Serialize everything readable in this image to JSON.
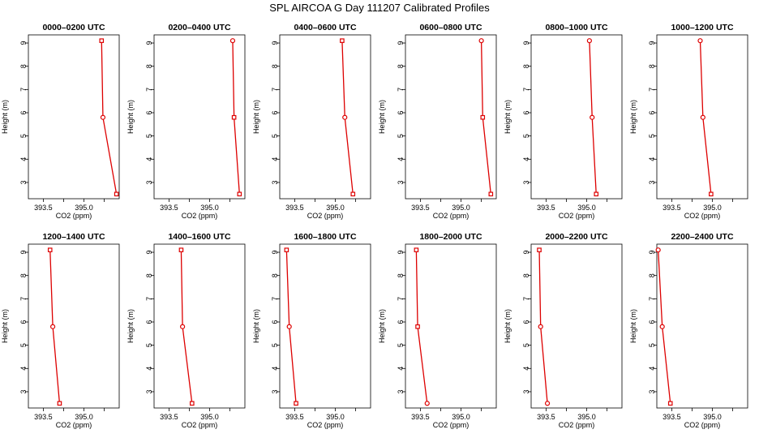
{
  "figure": {
    "title": "SPL AIRCOA G  Day 111207  Calibrated Profiles"
  },
  "colors": {
    "profile": "#dd0000",
    "axis": "#000000"
  },
  "chart_data": [
    {
      "type": "line",
      "title": "0000–0200 UTC",
      "xlabel": "CO2 (ppm)",
      "ylabel": "Height (m)",
      "x_ticks": [
        "393.5",
        "395.0"
      ],
      "y_ticks": [
        "3",
        "4",
        "5",
        "6",
        "7",
        "8",
        "9"
      ],
      "xlim": [
        392.95,
        396.3
      ],
      "ylim": [
        2.3,
        9.35
      ],
      "grid": false,
      "series": [
        {
          "x": [
            395.65,
            395.7,
            396.2
          ],
          "y": [
            9.1,
            5.8,
            2.5
          ],
          "markers": [
            "square",
            "circle",
            "square"
          ]
        }
      ]
    },
    {
      "type": "line",
      "title": "0200–0400 UTC",
      "xlabel": "CO2 (ppm)",
      "ylabel": "Height (m)",
      "x_ticks": [
        "393.5",
        "395.0"
      ],
      "y_ticks": [
        "3",
        "4",
        "5",
        "6",
        "7",
        "8",
        "9"
      ],
      "xlim": [
        392.95,
        396.3
      ],
      "ylim": [
        2.3,
        9.35
      ],
      "grid": false,
      "series": [
        {
          "x": [
            395.85,
            395.9,
            396.1
          ],
          "y": [
            9.1,
            5.8,
            2.5
          ],
          "markers": [
            "circle",
            "square",
            "square"
          ]
        }
      ]
    },
    {
      "type": "line",
      "title": "0400–0600 UTC",
      "xlabel": "CO2 (ppm)",
      "ylabel": "Height (m)",
      "x_ticks": [
        "393.5",
        "395.0"
      ],
      "y_ticks": [
        "3",
        "4",
        "5",
        "6",
        "7",
        "8",
        "9"
      ],
      "xlim": [
        392.95,
        396.3
      ],
      "ylim": [
        2.3,
        9.35
      ],
      "grid": false,
      "series": [
        {
          "x": [
            395.25,
            395.35,
            395.65
          ],
          "y": [
            9.1,
            5.8,
            2.5
          ],
          "markers": [
            "square",
            "circle",
            "square"
          ]
        }
      ]
    },
    {
      "type": "line",
      "title": "0600–0800 UTC",
      "xlabel": "CO2 (ppm)",
      "ylabel": "Height (m)",
      "x_ticks": [
        "393.5",
        "395.0"
      ],
      "y_ticks": [
        "3",
        "4",
        "5",
        "6",
        "7",
        "8",
        "9"
      ],
      "xlim": [
        392.95,
        396.3
      ],
      "ylim": [
        2.3,
        9.35
      ],
      "grid": false,
      "series": [
        {
          "x": [
            395.75,
            395.8,
            396.1
          ],
          "y": [
            9.1,
            5.8,
            2.5
          ],
          "markers": [
            "circle",
            "square",
            "square"
          ]
        }
      ]
    },
    {
      "type": "line",
      "title": "0800–1000 UTC",
      "xlabel": "CO2 (ppm)",
      "ylabel": "Height (m)",
      "x_ticks": [
        "393.5",
        "395.0"
      ],
      "y_ticks": [
        "3",
        "4",
        "5",
        "6",
        "7",
        "8",
        "9"
      ],
      "xlim": [
        392.95,
        396.3
      ],
      "ylim": [
        2.3,
        9.35
      ],
      "grid": false,
      "series": [
        {
          "x": [
            395.1,
            395.2,
            395.35
          ],
          "y": [
            9.1,
            5.8,
            2.5
          ],
          "markers": [
            "circle",
            "circle",
            "square"
          ]
        }
      ]
    },
    {
      "type": "line",
      "title": "1000–1200 UTC",
      "xlabel": "CO2 (ppm)",
      "ylabel": "Height (m)",
      "x_ticks": [
        "393.5",
        "395.0"
      ],
      "y_ticks": [
        "3",
        "4",
        "5",
        "6",
        "7",
        "8",
        "9"
      ],
      "xlim": [
        392.95,
        396.3
      ],
      "ylim": [
        2.3,
        9.35
      ],
      "grid": false,
      "series": [
        {
          "x": [
            394.55,
            394.65,
            394.95
          ],
          "y": [
            9.1,
            5.8,
            2.5
          ],
          "markers": [
            "circle",
            "circle",
            "square"
          ]
        }
      ]
    },
    {
      "type": "line",
      "title": "1200–1400 UTC",
      "xlabel": "CO2 (ppm)",
      "ylabel": "Height (m)",
      "x_ticks": [
        "393.5",
        "395.0"
      ],
      "y_ticks": [
        "3",
        "4",
        "5",
        "6",
        "7",
        "8",
        "9"
      ],
      "xlim": [
        392.95,
        396.3
      ],
      "ylim": [
        2.3,
        9.35
      ],
      "grid": false,
      "series": [
        {
          "x": [
            393.75,
            393.85,
            394.1
          ],
          "y": [
            9.1,
            5.8,
            2.5
          ],
          "markers": [
            "square",
            "circle",
            "square"
          ]
        }
      ]
    },
    {
      "type": "line",
      "title": "1400–1600 UTC",
      "xlabel": "CO2 (ppm)",
      "ylabel": "Height (m)",
      "x_ticks": [
        "393.5",
        "395.0"
      ],
      "y_ticks": [
        "3",
        "4",
        "5",
        "6",
        "7",
        "8",
        "9"
      ],
      "xlim": [
        392.95,
        396.3
      ],
      "ylim": [
        2.3,
        9.35
      ],
      "grid": false,
      "series": [
        {
          "x": [
            393.95,
            394.0,
            394.35
          ],
          "y": [
            9.1,
            5.8,
            2.5
          ],
          "markers": [
            "square",
            "circle",
            "square"
          ]
        }
      ]
    },
    {
      "type": "line",
      "title": "1600–1800 UTC",
      "xlabel": "CO2 (ppm)",
      "ylabel": "Height (m)",
      "x_ticks": [
        "393.5",
        "395.0"
      ],
      "y_ticks": [
        "3",
        "4",
        "5",
        "6",
        "7",
        "8",
        "9"
      ],
      "xlim": [
        392.95,
        396.3
      ],
      "ylim": [
        2.3,
        9.35
      ],
      "grid": false,
      "series": [
        {
          "x": [
            393.2,
            393.3,
            393.55
          ],
          "y": [
            9.1,
            5.8,
            2.5
          ],
          "markers": [
            "square",
            "circle",
            "square"
          ]
        }
      ]
    },
    {
      "type": "line",
      "title": "1800–2000 UTC",
      "xlabel": "CO2 (ppm)",
      "ylabel": "Height (m)",
      "x_ticks": [
        "393.5",
        "395.0"
      ],
      "y_ticks": [
        "3",
        "4",
        "5",
        "6",
        "7",
        "8",
        "9"
      ],
      "xlim": [
        392.95,
        396.3
      ],
      "ylim": [
        2.3,
        9.35
      ],
      "grid": false,
      "series": [
        {
          "x": [
            393.35,
            393.4,
            393.75
          ],
          "y": [
            9.1,
            5.8,
            2.5
          ],
          "markers": [
            "square",
            "square",
            "circle"
          ]
        }
      ]
    },
    {
      "type": "line",
      "title": "2000–2200 UTC",
      "xlabel": "CO2 (ppm)",
      "ylabel": "Height (m)",
      "x_ticks": [
        "393.5",
        "395.0"
      ],
      "y_ticks": [
        "3",
        "4",
        "5",
        "6",
        "7",
        "8",
        "9"
      ],
      "xlim": [
        392.95,
        396.3
      ],
      "ylim": [
        2.3,
        9.35
      ],
      "grid": false,
      "series": [
        {
          "x": [
            393.25,
            393.3,
            393.55
          ],
          "y": [
            9.1,
            5.8,
            2.5
          ],
          "markers": [
            "square",
            "circle",
            "circle"
          ]
        }
      ]
    },
    {
      "type": "line",
      "title": "2200–2400 UTC",
      "xlabel": "CO2 (ppm)",
      "ylabel": "Height (m)",
      "x_ticks": [
        "393.5",
        "395.0"
      ],
      "y_ticks": [
        "3",
        "4",
        "5",
        "6",
        "7",
        "8",
        "9"
      ],
      "xlim": [
        392.95,
        396.3
      ],
      "ylim": [
        2.3,
        9.35
      ],
      "grid": false,
      "series": [
        {
          "x": [
            393.0,
            393.15,
            393.45
          ],
          "y": [
            9.1,
            5.8,
            2.5
          ],
          "markers": [
            "circle",
            "circle",
            "square"
          ]
        }
      ]
    }
  ]
}
